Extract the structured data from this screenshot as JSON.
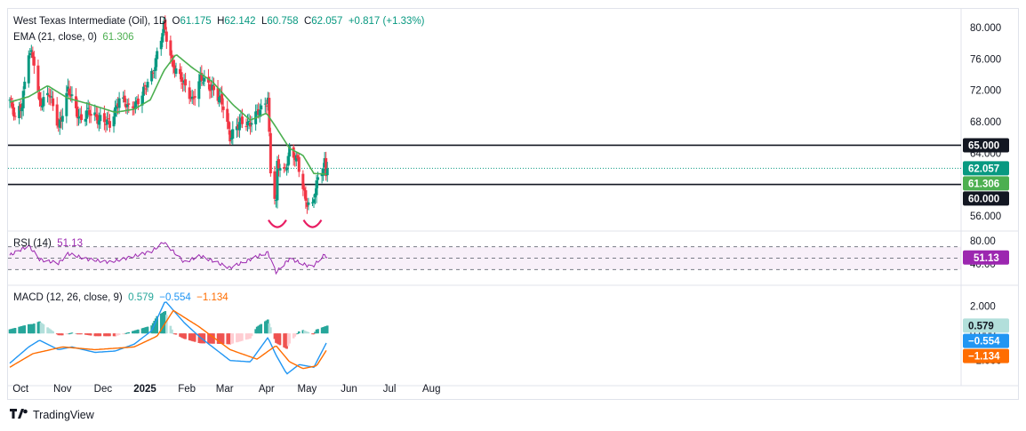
{
  "header": {
    "symbol": "West Texas Intermediate (Oil), 1D",
    "o_label": "O",
    "o": "61.175",
    "h_label": "H",
    "h": "62.142",
    "l_label": "L",
    "l": "60.758",
    "c_label": "C",
    "c": "62.057",
    "change": "+0.817 (+1.33%)",
    "ema_label": "EMA (21, close, 0)",
    "ema_value": "61.306"
  },
  "rsi_legend": {
    "label": "RSI (14)",
    "value": "51.13"
  },
  "macd_legend": {
    "label": "MACD (12, 26, close, 9)",
    "hist": "0.579",
    "macd": "−0.554",
    "signal": "−1.134"
  },
  "footer": {
    "brand": "TradingView"
  },
  "colors": {
    "up": "#089981",
    "down": "#f23645",
    "ema": "#4caf50",
    "rsi": "#9c27b0",
    "macd": "#2196f3",
    "signal": "#ff6d00",
    "hist_up": "#26a69a",
    "hist_down": "#ef5350"
  },
  "chart_data": [
    {
      "type": "candlestick",
      "title": "West Texas Intermediate (Oil), 1D",
      "x_ticks": [
        "Oct",
        "Nov",
        "Dec",
        "2025",
        "Feb",
        "Mar",
        "Apr",
        "May",
        "Jun",
        "Jul",
        "Aug"
      ],
      "y_ticks": [
        "80.000",
        "76.000",
        "72.000",
        "68.000",
        "64.000",
        "60.000",
        "56.000"
      ],
      "ylim": [
        54.5,
        81.5
      ],
      "grid": false,
      "horizontal_lines": [
        {
          "value": 65.0,
          "label": "65.000",
          "color": "#131722"
        },
        {
          "value": 60.0,
          "label": "60.000",
          "color": "#131722"
        },
        {
          "value": 62.057,
          "label": "62.057",
          "color": "#089981",
          "style": "dotted"
        }
      ],
      "price_labels": [
        {
          "value": 62.057,
          "label": "62.057",
          "color": "#089981"
        },
        {
          "value": 61.306,
          "label": "61.306",
          "color": "#4caf50"
        }
      ],
      "anchors": [
        [
          "2024-09-23",
          70.8
        ],
        [
          "2024-09-27",
          68.2
        ],
        [
          "2024-10-02",
          70.5
        ],
        [
          "2024-10-07",
          77.0
        ],
        [
          "2024-10-11",
          75.5
        ],
        [
          "2024-10-15",
          70.5
        ],
        [
          "2024-10-22",
          71.5
        ],
        [
          "2024-10-29",
          67.5
        ],
        [
          "2024-11-05",
          71.9
        ],
        [
          "2024-11-14",
          68.5
        ],
        [
          "2024-11-20",
          69.0
        ],
        [
          "2024-11-29",
          68.5
        ],
        [
          "2024-12-06",
          67.4
        ],
        [
          "2024-12-13",
          71.3
        ],
        [
          "2024-12-20",
          69.5
        ],
        [
          "2024-12-31",
          71.7
        ],
        [
          "2025-01-06",
          74.0
        ],
        [
          "2025-01-10",
          76.8
        ],
        [
          "2025-01-15",
          80.0
        ],
        [
          "2025-01-21",
          75.8
        ],
        [
          "2025-01-30",
          72.5
        ],
        [
          "2025-02-05",
          71.0
        ],
        [
          "2025-02-11",
          73.3
        ],
        [
          "2025-02-20",
          72.5
        ],
        [
          "2025-02-28",
          69.8
        ],
        [
          "2025-03-05",
          66.3
        ],
        [
          "2025-03-12",
          67.6
        ],
        [
          "2025-03-20",
          68.1
        ],
        [
          "2025-03-28",
          69.4
        ],
        [
          "2025-04-02",
          71.2
        ],
        [
          "2025-04-04",
          61.9
        ],
        [
          "2025-04-08",
          57.3
        ],
        [
          "2025-04-09",
          62.4
        ],
        [
          "2025-04-14",
          61.6
        ],
        [
          "2025-04-18",
          64.5
        ],
        [
          "2025-04-24",
          62.7
        ],
        [
          "2025-04-30",
          58.2
        ],
        [
          "2025-05-05",
          57.1
        ],
        [
          "2025-05-08",
          59.9
        ],
        [
          "2025-05-12",
          61.9
        ],
        [
          "2025-05-14",
          63.2
        ],
        [
          "2025-05-15",
          61.2
        ],
        [
          "2025-05-16",
          62.057
        ]
      ],
      "ema_anchors": [
        [
          "2024-09-23",
          70.5
        ],
        [
          "2024-10-07",
          71.2
        ],
        [
          "2024-10-21",
          72.6
        ],
        [
          "2024-11-05",
          71.0
        ],
        [
          "2024-11-20",
          70.3
        ],
        [
          "2024-12-10",
          69.2
        ],
        [
          "2024-12-24",
          69.6
        ],
        [
          "2025-01-05",
          70.8
        ],
        [
          "2025-01-15",
          74.5
        ],
        [
          "2025-01-24",
          76.6
        ],
        [
          "2025-02-05",
          74.9
        ],
        [
          "2025-02-20",
          73.1
        ],
        [
          "2025-03-07",
          70.2
        ],
        [
          "2025-03-20",
          68.2
        ],
        [
          "2025-04-01",
          69.1
        ],
        [
          "2025-04-08",
          67.3
        ],
        [
          "2025-04-18",
          64.6
        ],
        [
          "2025-04-28",
          63.7
        ],
        [
          "2025-05-06",
          61.4
        ],
        [
          "2025-05-16",
          61.306
        ]
      ],
      "patterns": [
        {
          "type": "arc",
          "date": "2025-04-09",
          "value": 55.0
        },
        {
          "type": "arc",
          "date": "2025-05-05",
          "value": 55.0
        }
      ]
    },
    {
      "type": "line",
      "title": "RSI (14)",
      "y_ticks": [
        "80.00",
        "40.00"
      ],
      "ylim": [
        15,
        85
      ],
      "bands": {
        "upper": 70,
        "middle": 50,
        "lower": 30
      },
      "series": [
        {
          "name": "RSI (14)",
          "last": 51.13,
          "anchors": [
            [
              "2024-09-23",
              55
            ],
            [
              "2024-10-07",
              72
            ],
            [
              "2024-10-15",
              48
            ],
            [
              "2024-10-29",
              41
            ],
            [
              "2024-11-05",
              58
            ],
            [
              "2024-11-20",
              48
            ],
            [
              "2024-12-06",
              43
            ],
            [
              "2024-12-20",
              51
            ],
            [
              "2025-01-06",
              62
            ],
            [
              "2025-01-15",
              78
            ],
            [
              "2025-01-30",
              43
            ],
            [
              "2025-02-11",
              54
            ],
            [
              "2025-03-05",
              33
            ],
            [
              "2025-03-20",
              48
            ],
            [
              "2025-04-02",
              60
            ],
            [
              "2025-04-08",
              25
            ],
            [
              "2025-04-18",
              49
            ],
            [
              "2025-04-30",
              38
            ],
            [
              "2025-05-05",
              35
            ],
            [
              "2025-05-14",
              56
            ],
            [
              "2025-05-16",
              51.13
            ]
          ]
        }
      ]
    },
    {
      "type": "bar+line",
      "title": "MACD (12, 26, close, 9)",
      "y_ticks": [
        "2.000",
        "0.000",
        "−2.000"
      ],
      "ylim": [
        -3.6,
        3.1
      ],
      "series": [
        {
          "name": "histogram",
          "last": 0.579
        },
        {
          "name": "macd",
          "last": -0.554,
          "anchors": [
            [
              "2024-09-23",
              -2.2
            ],
            [
              "2024-10-07",
              -1.0
            ],
            [
              "2024-10-15",
              -0.5
            ],
            [
              "2024-10-29",
              -1.2
            ],
            [
              "2024-11-08",
              -1.0
            ],
            [
              "2024-11-25",
              -1.4
            ],
            [
              "2024-12-10",
              -1.3
            ],
            [
              "2024-12-24",
              -0.8
            ],
            [
              "2025-01-06",
              0.2
            ],
            [
              "2025-01-16",
              2.4
            ],
            [
              "2025-01-30",
              0.8
            ],
            [
              "2025-02-11",
              -0.3
            ],
            [
              "2025-03-05",
              -2.0
            ],
            [
              "2025-03-20",
              -2.1
            ],
            [
              "2025-04-02",
              -0.3
            ],
            [
              "2025-04-08",
              -1.6
            ],
            [
              "2025-04-16",
              -3.0
            ],
            [
              "2025-04-25",
              -2.3
            ],
            [
              "2025-05-06",
              -2.5
            ],
            [
              "2025-05-16",
              -0.554
            ]
          ]
        },
        {
          "name": "signal",
          "last": -1.134,
          "anchors": [
            [
              "2024-09-23",
              -2.5
            ],
            [
              "2024-10-10",
              -1.5
            ],
            [
              "2024-11-01",
              -1.0
            ],
            [
              "2024-11-25",
              -1.2
            ],
            [
              "2024-12-24",
              -1.0
            ],
            [
              "2025-01-10",
              -0.2
            ],
            [
              "2025-01-22",
              1.7
            ],
            [
              "2025-02-10",
              0.5
            ],
            [
              "2025-03-05",
              -1.2
            ],
            [
              "2025-03-25",
              -1.9
            ],
            [
              "2025-04-08",
              -0.9
            ],
            [
              "2025-04-18",
              -2.1
            ],
            [
              "2025-04-28",
              -2.6
            ],
            [
              "2025-05-08",
              -2.4
            ],
            [
              "2025-05-16",
              -1.134
            ]
          ]
        }
      ]
    }
  ]
}
